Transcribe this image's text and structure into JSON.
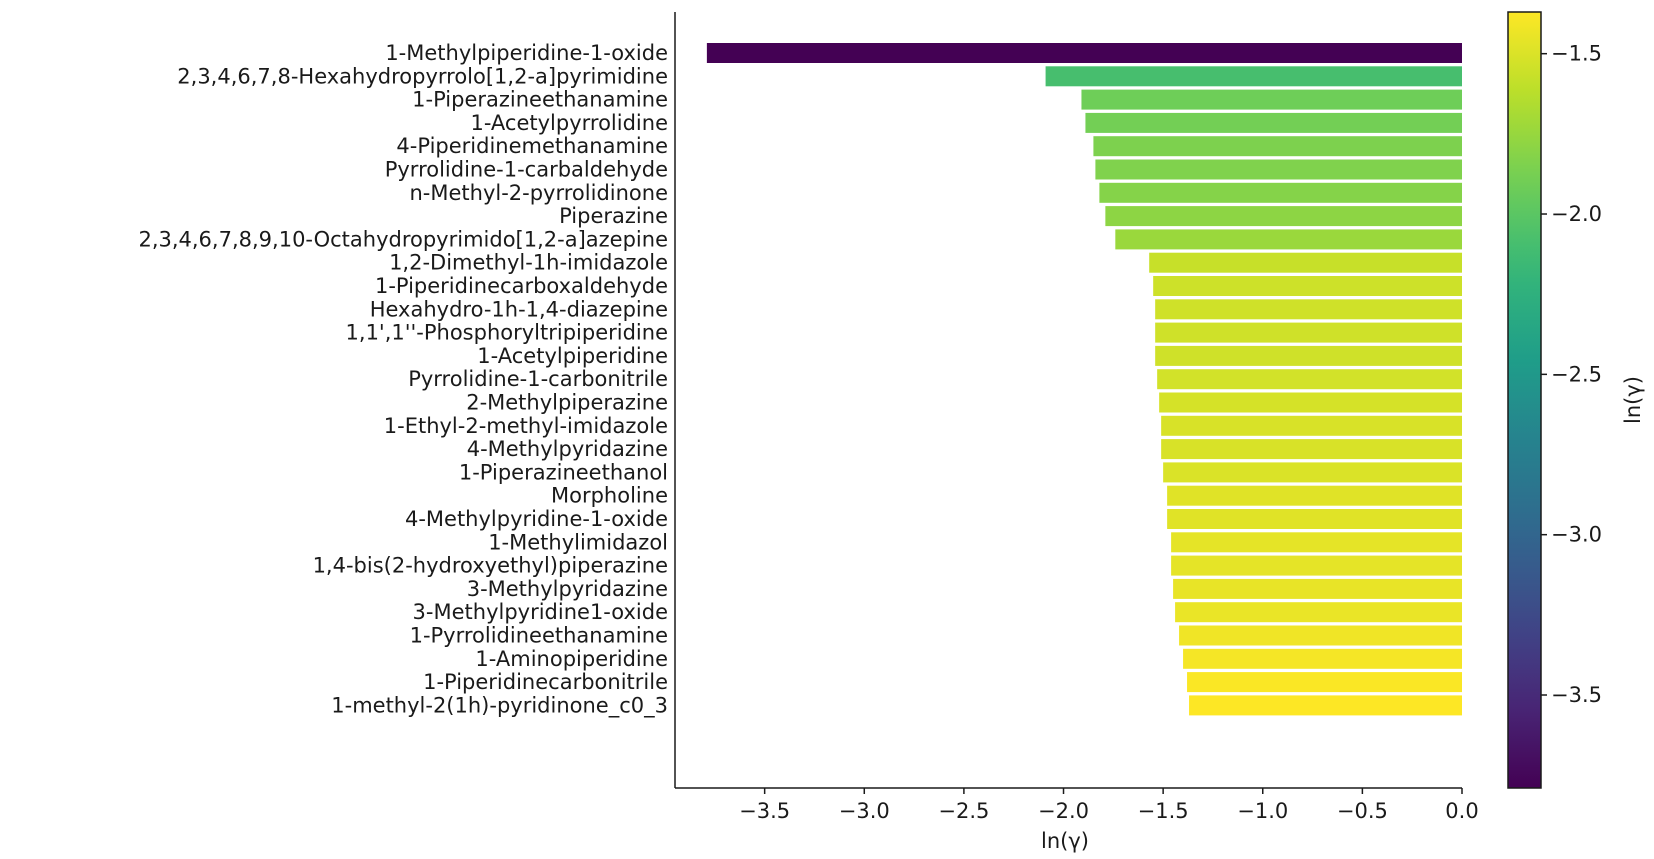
{
  "chart_data": {
    "type": "bar",
    "orientation": "horizontal",
    "categories": [
      "1-Methylpiperidine-1-oxide",
      "2,3,4,6,7,8-Hexahydropyrrolo[1,2-a]pyrimidine",
      "1-Piperazineethanamine",
      "1-Acetylpyrrolidine",
      "4-Piperidinemethanamine",
      "Pyrrolidine-1-carbaldehyde",
      "n-Methyl-2-pyrrolidinone",
      "Piperazine",
      "2,3,4,6,7,8,9,10-Octahydropyrimido[1,2-a]azepine",
      "1,2-Dimethyl-1h-imidazole",
      "1-Piperidinecarboxaldehyde",
      "Hexahydro-1h-1,4-diazepine",
      "1,1',1''-Phosphoryltripiperidine",
      "1-Acetylpiperidine",
      "Pyrrolidine-1-carbonitrile",
      "2-Methylpiperazine",
      "1-Ethyl-2-methyl-imidazole",
      "4-Methylpyridazine",
      "1-Piperazineethanol",
      "Morpholine",
      "4-Methylpyridine-1-oxide",
      "1-Methylimidazol",
      "1,4-bis(2-hydroxyethyl)piperazine",
      "3-Methylpyridazine",
      "3-Methylpyridine1-oxide",
      "1-Pyrrolidineethanamine",
      "1-Aminopiperidine",
      "1-Piperidinecarbonitrile",
      "1-methyl-2(1h)-pyridinone_c0_3"
    ],
    "values": [
      -3.79,
      -2.09,
      -1.91,
      -1.89,
      -1.85,
      -1.84,
      -1.82,
      -1.79,
      -1.74,
      -1.57,
      -1.55,
      -1.54,
      -1.54,
      -1.54,
      -1.53,
      -1.52,
      -1.51,
      -1.51,
      -1.5,
      -1.48,
      -1.48,
      -1.46,
      -1.46,
      -1.45,
      -1.44,
      -1.42,
      -1.4,
      -1.38,
      -1.37
    ],
    "xlabel": "ln(γ)",
    "xlim": [
      -3.95,
      0.0
    ],
    "xticks": [
      -3.5,
      -3.0,
      -2.5,
      -2.0,
      -1.5,
      -1.0,
      -0.5,
      0.0
    ],
    "xtick_labels": [
      "−3.5",
      "−3.0",
      "−2.5",
      "−2.0",
      "−1.5",
      "−1.0",
      "−0.5",
      "0.0"
    ],
    "colormap": "viridis",
    "colorbar": {
      "label": "ln(γ)",
      "range": [
        -3.79,
        -1.37
      ],
      "ticks": [
        -1.5,
        -2.0,
        -2.5,
        -3.0,
        -3.5
      ],
      "tick_labels": [
        "−1.5",
        "−2.0",
        "−2.5",
        "−3.0",
        "−3.5"
      ]
    },
    "grid": false
  }
}
